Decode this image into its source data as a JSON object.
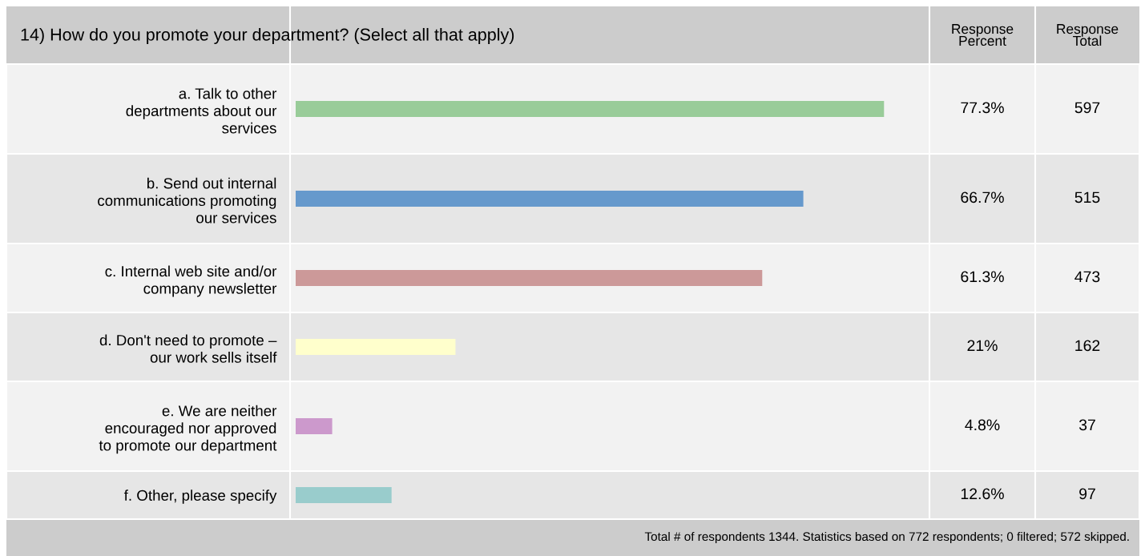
{
  "chart_data": {
    "type": "bar",
    "orientation": "horizontal",
    "title": "14) How do you promote your department? (Select all that apply)",
    "categories": [
      "a. Talk to other\ndepartments about our\nservices",
      "b. Send out internal\ncommunications promoting\nour services",
      "c. Internal web site and/or\ncompany newsletter",
      "d. Don't need to promote –\nour work sells itself",
      "e. We are neither\nencouraged nor approved\nto promote our department",
      "f. Other, please specify"
    ],
    "values": [
      77.3,
      66.7,
      61.3,
      21,
      4.8,
      12.6
    ],
    "colors": [
      "#99cc99",
      "#6699cc",
      "#cc9999",
      "#ffffcc",
      "#cc99cc",
      "#99cccc"
    ],
    "value_labels": [
      "77.3%",
      "66.7%",
      "61.3%",
      "21%",
      "4.8%",
      "12.6%"
    ],
    "tick_labels": "y",
    "grid": false,
    "annotations": [
      "Response\nPercent",
      "Response\nTotal",
      "Total # of respondents 1344. Statistics based on 772 respondents; 0 filtered; 572 skipped.",
      "597",
      "515",
      "473",
      "162",
      "37",
      "97"
    ]
  }
}
